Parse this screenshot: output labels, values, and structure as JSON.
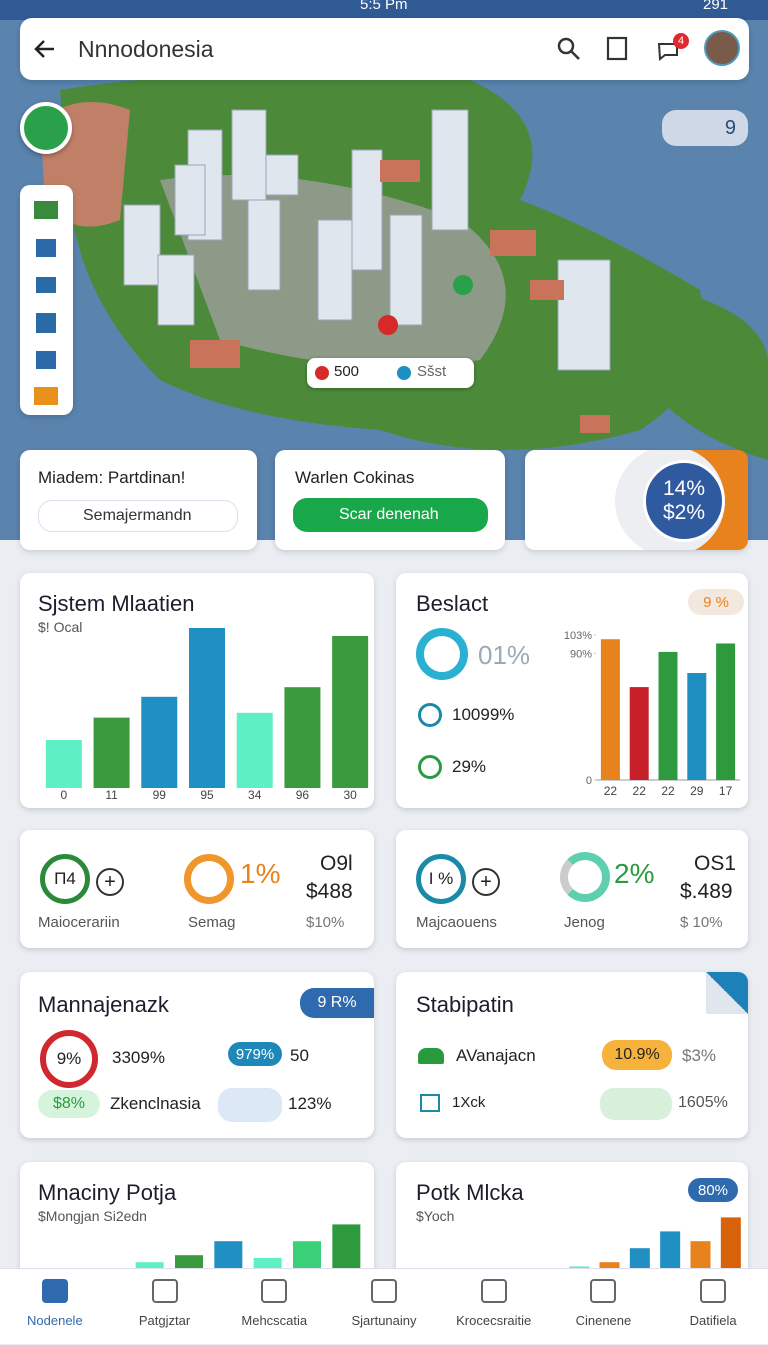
{
  "status_bar": {
    "time": "5:5 Pm",
    "battery": "291"
  },
  "search_bar": {
    "title": "Nnnodonesia",
    "badge": "4"
  },
  "map": {
    "counter": "9",
    "pins": [
      "500",
      "Sšst"
    ]
  },
  "cards": [
    {
      "title": "Miadem: Partdinan!",
      "button": "Semajermandn"
    },
    {
      "title": "Warlen Cokinas",
      "button": "Scar denenah"
    },
    {
      "top": "14%",
      "bottom": "$2%"
    }
  ],
  "chart_data": [
    {
      "type": "bar",
      "title": "Sjstem Mlaatien",
      "subtitle": "$! Ocal",
      "categories": [
        "0",
        "11",
        "99",
        "95",
        "34",
        "96",
        "30"
      ],
      "values": [
        30,
        44,
        57,
        100,
        47,
        63,
        95
      ],
      "colors": [
        "#5ef0c4",
        "#3a9a3e",
        "#1f8fc4",
        "#1f8fc4",
        "#5ef0c4",
        "#3a9a3e",
        "#3a9a3e"
      ],
      "ylim": [
        0,
        100
      ]
    },
    {
      "type": "bar",
      "title": "Beslact",
      "badge": "9 %",
      "stats": [
        "01%",
        "10099%",
        "29%"
      ],
      "categories": [
        "22",
        "22",
        "22",
        "29",
        "17"
      ],
      "values": [
        100,
        66,
        91,
        76,
        97
      ],
      "colors": [
        "#e8821c",
        "#c8202a",
        "#2e9a3e",
        "#1e8fc0",
        "#2e9a3e"
      ],
      "ylim": [
        0,
        103
      ],
      "yticks": [
        0,
        {
          "value": 90,
          "label": "90%"
        },
        {
          "value": 103,
          "label": "103%"
        }
      ]
    },
    {
      "type": "bar",
      "title": "Mnaciny Potja",
      "subtitle": "$Mongjan Si2edn",
      "values": [
        14,
        24,
        44,
        20,
        44,
        68
      ],
      "colors": [
        "#5ef0c4",
        "#3a9a3e",
        "#1f8fc4",
        "#5ef0c4",
        "#3ad07a",
        "#2e9a3e"
      ],
      "ylim": [
        0,
        100
      ]
    },
    {
      "type": "bar",
      "title": "Potk Mlcka",
      "subtitle": "$Yoch",
      "badge": "80%",
      "values": [
        8,
        14,
        34,
        58,
        44,
        78
      ],
      "colors": [
        "#5ef0c4",
        "#e8821c",
        "#1f8fc4",
        "#1f8fc4",
        "#e8821c",
        "#d8620c"
      ],
      "ylim": [
        0,
        100
      ]
    }
  ],
  "stat_cards": [
    {
      "ring": "Π4",
      "ring_value": "1%",
      "code": "O9l",
      "amount": "$488",
      "label_left": "Maiocerariin",
      "label_mid": "Semag",
      "label_right": "$10%"
    },
    {
      "ring": "I %",
      "ring_value": "2%",
      "code": "OS1",
      "amount": "$.489",
      "label_left": "Majcaouens",
      "label_mid": "Jenog",
      "label_right": "$ 10%"
    }
  ],
  "detail_cards": [
    {
      "title": "Mannajenazk",
      "badge": "9 R%",
      "ring": "9%",
      "ring_value": "3309%",
      "pill": "979%",
      "pill_value": "50",
      "tag": "$8%",
      "tag_label": "Zkenclnasia",
      "boat_value": "123%"
    },
    {
      "title": "Stabipatin",
      "row1_label": "AVanajacn",
      "row1_pill": "10.9%",
      "row1_value": "$3%",
      "row2_label": "1Xck",
      "row2_value": "1605%"
    }
  ],
  "nav": [
    "Nodenele",
    "Patgjztar",
    "Mehcscatia",
    "Sjartunainy",
    "Krocecsraitie",
    "Cinenene",
    "Datifiela"
  ]
}
